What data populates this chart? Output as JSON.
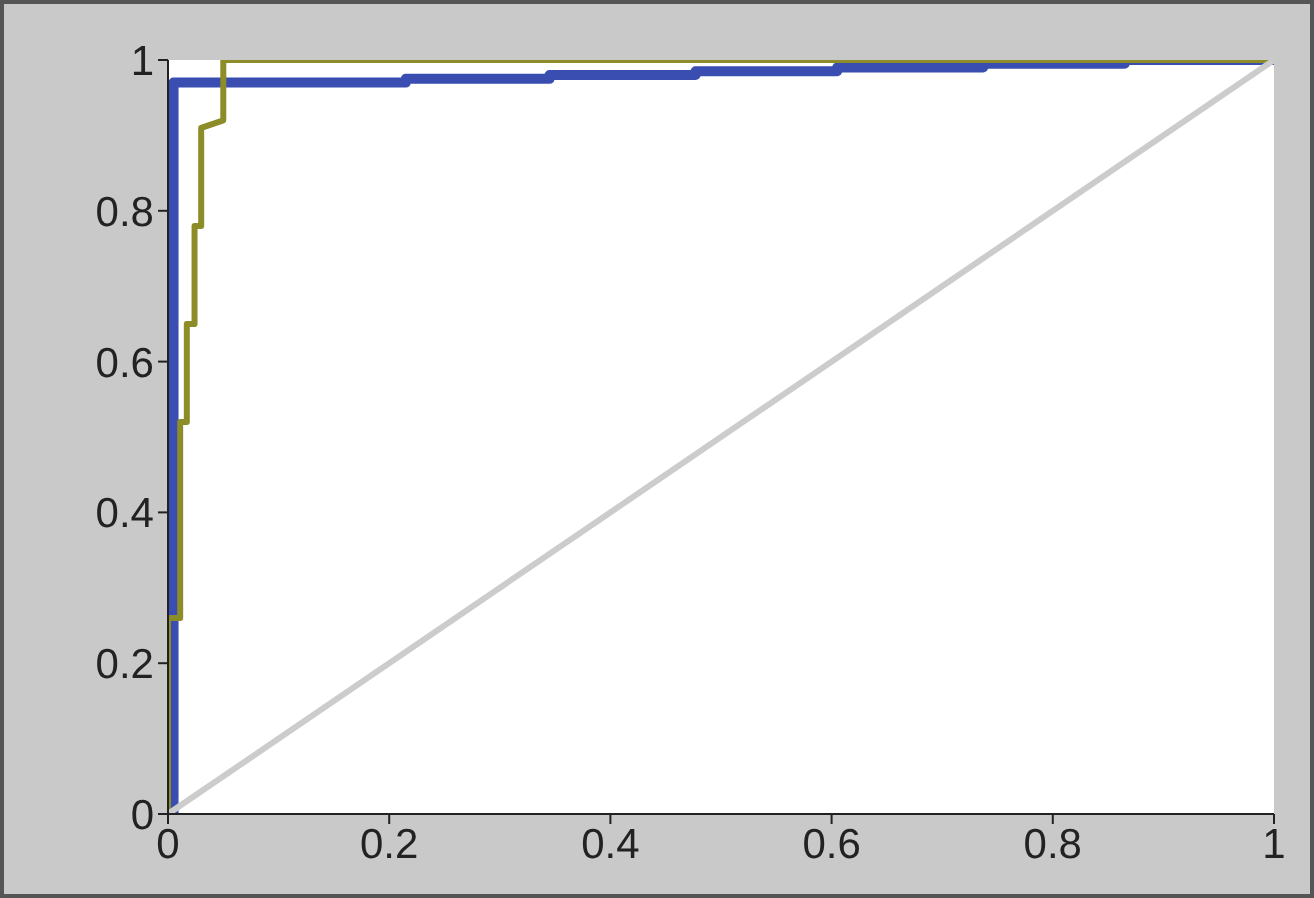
{
  "chart_data": {
    "type": "line",
    "xlim": [
      0,
      1
    ],
    "ylim": [
      0,
      1
    ],
    "xticks": [
      0,
      0.2,
      0.4,
      0.6,
      0.8,
      1
    ],
    "yticks": [
      0,
      0.2,
      0.4,
      0.6,
      0.8,
      1
    ],
    "marker": "none",
    "line_style": "solid",
    "series": [
      {
        "color": "#3a4db0",
        "x": [
          0,
          0.005,
          0.005,
          0.215,
          0.215,
          0.345,
          0.345,
          0.477,
          0.477,
          0.605,
          0.605,
          0.737,
          0.737,
          0.865,
          0.865,
          1
        ],
        "values": [
          0,
          0,
          0.97,
          0.97,
          0.975,
          0.975,
          0.98,
          0.98,
          0.985,
          0.985,
          0.99,
          0.99,
          0.995,
          0.995,
          1,
          1
        ]
      },
      {
        "color": "#8c8c28",
        "x": [
          0,
          0,
          0.011,
          0.011,
          0.017,
          0.017,
          0.024,
          0.024,
          0.03,
          0.03,
          0.05,
          0.05,
          1
        ],
        "values": [
          0,
          0.26,
          0.26,
          0.52,
          0.52,
          0.65,
          0.65,
          0.78,
          0.78,
          0.91,
          0.92,
          1,
          1
        ]
      },
      {
        "color": "#cccccc",
        "x": [
          0,
          1
        ],
        "values": [
          0,
          1
        ]
      }
    ]
  }
}
